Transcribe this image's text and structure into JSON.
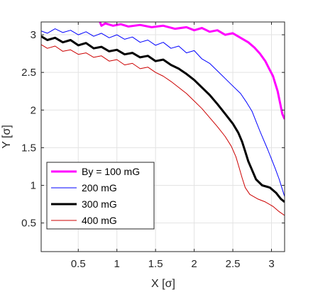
{
  "chart_data": {
    "type": "line",
    "title": "",
    "xlabel": "X [σ]",
    "ylabel": "Y [σ]",
    "xlim": [
      0.02,
      3.17
    ],
    "ylim": [
      0.12,
      3.17
    ],
    "x_ticks": [
      0.5,
      1,
      1.5,
      2,
      2.5,
      3
    ],
    "y_ticks": [
      0.5,
      1,
      1.5,
      2,
      2.5,
      3
    ],
    "x_tick_labels": [
      "0.5",
      "1",
      "1.5",
      "2",
      "2.5",
      "3"
    ],
    "y_tick_labels": [
      "0.5",
      "1",
      "1.5",
      "2",
      "2.5",
      "3"
    ],
    "grid": true,
    "legend_position": "bottom-left",
    "series": [
      {
        "name": "By = 100 mG",
        "color": "#ff00ff",
        "width": 3,
        "points": [
          [
            0.78,
            3.17
          ],
          [
            0.8,
            3.12
          ],
          [
            0.85,
            3.15
          ],
          [
            0.95,
            3.12
          ],
          [
            1.05,
            3.14
          ],
          [
            1.15,
            3.11
          ],
          [
            1.3,
            3.13
          ],
          [
            1.45,
            3.1
          ],
          [
            1.6,
            3.12
          ],
          [
            1.75,
            3.08
          ],
          [
            1.9,
            3.1
          ],
          [
            2.0,
            3.06
          ],
          [
            2.1,
            3.09
          ],
          [
            2.2,
            3.04
          ],
          [
            2.3,
            3.06
          ],
          [
            2.4,
            3.0
          ],
          [
            2.5,
            3.02
          ],
          [
            2.6,
            2.96
          ],
          [
            2.7,
            2.9
          ],
          [
            2.78,
            2.83
          ],
          [
            2.85,
            2.75
          ],
          [
            2.92,
            2.65
          ],
          [
            2.97,
            2.55
          ],
          [
            3.02,
            2.45
          ],
          [
            3.05,
            2.35
          ],
          [
            3.08,
            2.25
          ],
          [
            3.1,
            2.15
          ],
          [
            3.12,
            2.05
          ],
          [
            3.14,
            1.95
          ],
          [
            3.17,
            1.88
          ]
        ]
      },
      {
        "name": "200 mG",
        "color": "#0000ff",
        "width": 1,
        "points": [
          [
            0.02,
            3.05
          ],
          [
            0.1,
            3.02
          ],
          [
            0.2,
            3.08
          ],
          [
            0.3,
            3.03
          ],
          [
            0.4,
            3.06
          ],
          [
            0.5,
            3.0
          ],
          [
            0.6,
            3.04
          ],
          [
            0.7,
            2.98
          ],
          [
            0.8,
            3.02
          ],
          [
            0.9,
            2.96
          ],
          [
            1.0,
            3.0
          ],
          [
            1.1,
            2.94
          ],
          [
            1.2,
            2.97
          ],
          [
            1.3,
            2.9
          ],
          [
            1.4,
            2.93
          ],
          [
            1.5,
            2.86
          ],
          [
            1.6,
            2.9
          ],
          [
            1.7,
            2.82
          ],
          [
            1.8,
            2.85
          ],
          [
            1.9,
            2.76
          ],
          [
            2.0,
            2.79
          ],
          [
            2.1,
            2.68
          ],
          [
            2.2,
            2.62
          ],
          [
            2.3,
            2.52
          ],
          [
            2.4,
            2.42
          ],
          [
            2.5,
            2.32
          ],
          [
            2.6,
            2.22
          ],
          [
            2.68,
            2.1
          ],
          [
            2.75,
            1.98
          ],
          [
            2.8,
            1.85
          ],
          [
            2.85,
            1.72
          ],
          [
            2.9,
            1.6
          ],
          [
            2.95,
            1.48
          ],
          [
            3.0,
            1.35
          ],
          [
            3.05,
            1.22
          ],
          [
            3.1,
            1.08
          ],
          [
            3.14,
            0.95
          ],
          [
            3.17,
            0.85
          ]
        ]
      },
      {
        "name": "300 mG",
        "color": "#000000",
        "width": 3,
        "points": [
          [
            0.02,
            2.98
          ],
          [
            0.1,
            2.93
          ],
          [
            0.2,
            2.96
          ],
          [
            0.3,
            2.9
          ],
          [
            0.4,
            2.93
          ],
          [
            0.5,
            2.86
          ],
          [
            0.6,
            2.89
          ],
          [
            0.7,
            2.82
          ],
          [
            0.8,
            2.84
          ],
          [
            0.9,
            2.78
          ],
          [
            1.0,
            2.8
          ],
          [
            1.1,
            2.74
          ],
          [
            1.2,
            2.76
          ],
          [
            1.3,
            2.7
          ],
          [
            1.4,
            2.72
          ],
          [
            1.5,
            2.65
          ],
          [
            1.6,
            2.67
          ],
          [
            1.7,
            2.6
          ],
          [
            1.8,
            2.55
          ],
          [
            1.9,
            2.48
          ],
          [
            2.0,
            2.4
          ],
          [
            2.1,
            2.3
          ],
          [
            2.2,
            2.2
          ],
          [
            2.3,
            2.08
          ],
          [
            2.4,
            1.95
          ],
          [
            2.5,
            1.82
          ],
          [
            2.57,
            1.7
          ],
          [
            2.62,
            1.58
          ],
          [
            2.66,
            1.45
          ],
          [
            2.7,
            1.32
          ],
          [
            2.75,
            1.2
          ],
          [
            2.8,
            1.08
          ],
          [
            2.88,
            1.0
          ],
          [
            2.98,
            0.97
          ],
          [
            3.06,
            0.9
          ],
          [
            3.12,
            0.82
          ],
          [
            3.17,
            0.78
          ]
        ]
      },
      {
        "name": "400 mG",
        "color": "#cc0000",
        "width": 1,
        "points": [
          [
            0.02,
            2.87
          ],
          [
            0.1,
            2.82
          ],
          [
            0.2,
            2.85
          ],
          [
            0.3,
            2.78
          ],
          [
            0.4,
            2.8
          ],
          [
            0.5,
            2.74
          ],
          [
            0.6,
            2.76
          ],
          [
            0.7,
            2.7
          ],
          [
            0.8,
            2.72
          ],
          [
            0.9,
            2.65
          ],
          [
            1.0,
            2.67
          ],
          [
            1.1,
            2.6
          ],
          [
            1.2,
            2.62
          ],
          [
            1.3,
            2.55
          ],
          [
            1.4,
            2.57
          ],
          [
            1.5,
            2.5
          ],
          [
            1.6,
            2.45
          ],
          [
            1.7,
            2.38
          ],
          [
            1.8,
            2.3
          ],
          [
            1.9,
            2.22
          ],
          [
            2.0,
            2.12
          ],
          [
            2.1,
            2.02
          ],
          [
            2.2,
            1.9
          ],
          [
            2.3,
            1.78
          ],
          [
            2.4,
            1.65
          ],
          [
            2.48,
            1.52
          ],
          [
            2.54,
            1.38
          ],
          [
            2.58,
            1.24
          ],
          [
            2.62,
            1.1
          ],
          [
            2.66,
            0.97
          ],
          [
            2.72,
            0.88
          ],
          [
            2.82,
            0.82
          ],
          [
            2.92,
            0.78
          ],
          [
            3.02,
            0.72
          ],
          [
            3.1,
            0.65
          ],
          [
            3.17,
            0.6
          ]
        ]
      }
    ]
  }
}
